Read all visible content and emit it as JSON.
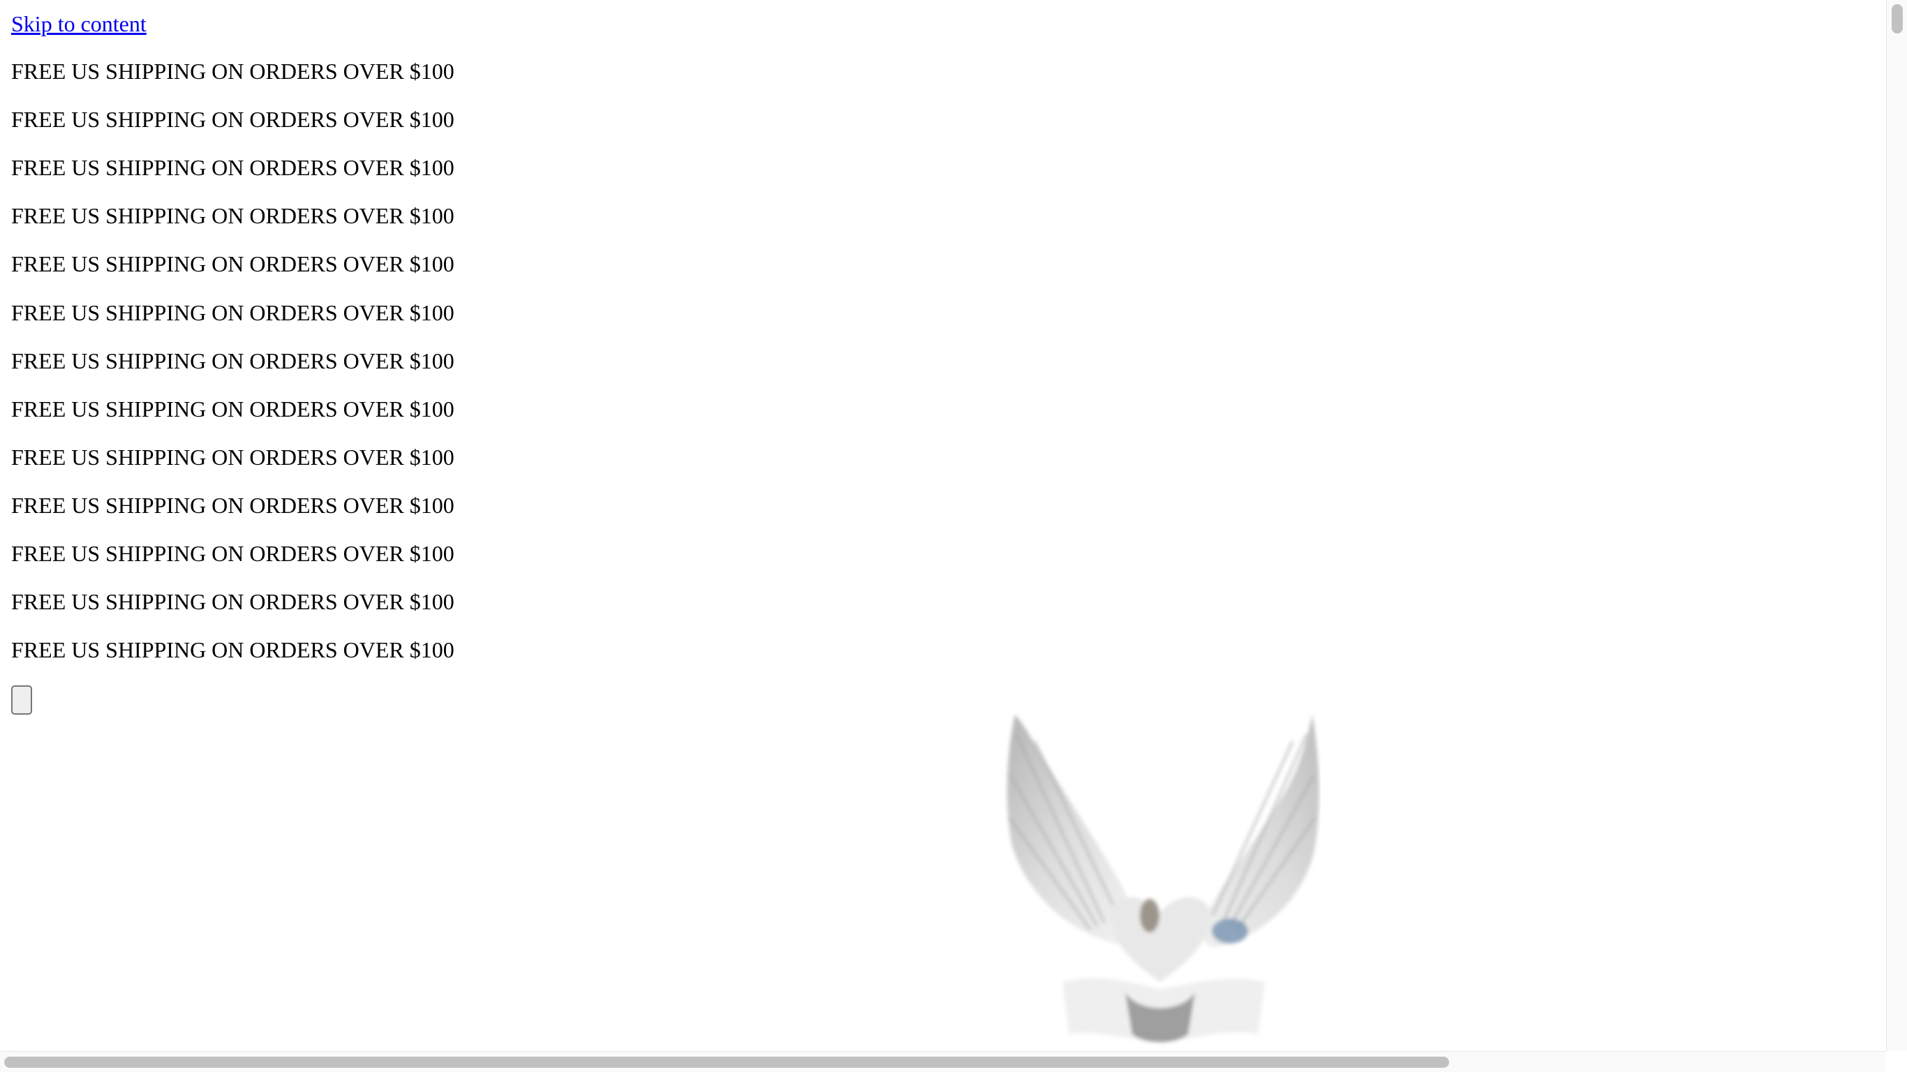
{
  "skip_link": {
    "label": "Skip to content"
  },
  "announcement_bar": {
    "messages": [
      "FREE US SHIPPING ON ORDERS OVER $100",
      "FREE US SHIPPING ON ORDERS OVER $100",
      "FREE US SHIPPING ON ORDERS OVER $100",
      "FREE US SHIPPING ON ORDERS OVER $100",
      "FREE US SHIPPING ON ORDERS OVER $100",
      "FREE US SHIPPING ON ORDERS OVER $100",
      "FREE US SHIPPING ON ORDERS OVER $100",
      "FREE US SHIPPING ON ORDERS OVER $100",
      "FREE US SHIPPING ON ORDERS OVER $100",
      "FREE US SHIPPING ON ORDERS OVER $100",
      "FREE US SHIPPING ON ORDERS OVER $100",
      "FREE US SHIPPING ON ORDERS OVER $100",
      "FREE US SHIPPING ON ORDERS OVER $100"
    ]
  },
  "header": {
    "menu_button_label": "",
    "logo_icon": "winged-heart-logo-icon"
  },
  "colors": {
    "link": "#0000ee",
    "text": "#000000",
    "background": "#ffffff",
    "scrollbar_thumb": "#c1c1c1"
  }
}
